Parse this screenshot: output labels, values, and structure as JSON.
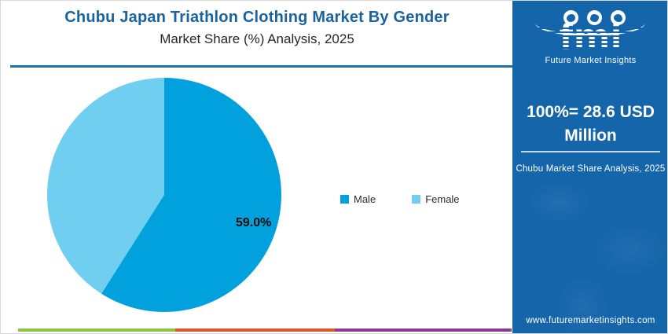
{
  "header": {
    "title": "Chubu Japan Triathlon Clothing Market By Gender",
    "subtitle": "Market Share (%) Analysis, 2025"
  },
  "chart_data": {
    "type": "pie",
    "title": "Chubu Japan Triathlon Clothing Market By Gender",
    "subtitle": "Market Share (%) Analysis, 2025",
    "categories": [
      "Male",
      "Female"
    ],
    "values": [
      59.0,
      41.0
    ],
    "unit": "%",
    "colors": [
      "#00a1dc",
      "#70cef1"
    ],
    "data_labels": {
      "Male": "59.0%"
    },
    "start_angle_deg": 0,
    "direction": "clockwise",
    "legend_position": "right",
    "total_note": "100%= 28.6 USD Million"
  },
  "legend": {
    "items": [
      {
        "label": "Male",
        "color": "#00a1dc"
      },
      {
        "label": "Female",
        "color": "#70cef1"
      }
    ]
  },
  "sidebar": {
    "bg_color": "#1565aa",
    "logo_text": "fmi",
    "logo_tagline": "Future Market Insights",
    "headline": "100%= 28.6 USD Million",
    "subtext": "Chubu Market Share Analysis, 2025",
    "website": "www.futuremarketinsights.com"
  },
  "footer_bar": {
    "segment_colors": [
      "#8cc540",
      "#e0562a",
      "#8c3a94"
    ]
  },
  "colors": {
    "title_blue": "#1a63a0",
    "rule_blue": "#1b72ae",
    "male_blue": "#00a1dc",
    "female_blue": "#70cef1"
  }
}
